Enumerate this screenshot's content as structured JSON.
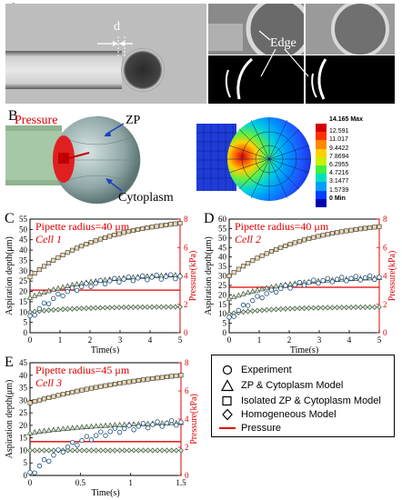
{
  "panel_a": {
    "letter": "A",
    "d_label": "d",
    "edge_label": "Edge"
  },
  "panel_b": {
    "letter": "B",
    "pressure_label": "Pressure",
    "zp_label": "ZP",
    "cytoplasm_label": "Cytoplasm",
    "colorbar": {
      "max_label": "14.165 Max",
      "ticks": [
        "12.591",
        "11.017",
        "9.4422",
        "7.8694",
        "6.2955",
        "4.7216",
        "3.1477",
        "1.5739",
        "0 Min"
      ],
      "colors": [
        "#d40000",
        "#ff3000",
        "#ff8800",
        "#ffd000",
        "#c8f000",
        "#40f040",
        "#00e0c0",
        "#00a0ff",
        "#0040ff",
        "#0000b0"
      ]
    }
  },
  "colors": {
    "pressure": "#e00000",
    "exp_edge": "#1a4d7a",
    "zp_fill": "#c9ecc0",
    "iso_fill": "#ecd9b0",
    "hom_fill": "#c9ecc0"
  },
  "legend": {
    "experiment": "Experiment",
    "zp_cyto": "ZP & Cytoplasm Model",
    "isolated": "Isolated ZP & Cytoplasm Model",
    "homogeneous": "Homogeneous Model",
    "pressure": "Pressure"
  },
  "chart_data": [
    {
      "type": "scatter",
      "letter": "C",
      "title": "Pipette radius=40 μm",
      "subtitle": "Cell 1",
      "xlabel": "Time(s)",
      "ylabel": "Aspiration depth(μm)",
      "y2label": "Pressure(kPa)",
      "xlim": [
        0,
        5
      ],
      "ylim": [
        0,
        55
      ],
      "y2lim": [
        0,
        8
      ],
      "xticks": [
        0,
        1,
        2,
        3,
        4,
        5
      ],
      "yticks": [
        0,
        5,
        10,
        15,
        20,
        25,
        30,
        35,
        40,
        45,
        50,
        55
      ],
      "y2ticks": [
        0,
        2,
        4,
        6,
        8
      ],
      "pressure_kpa": 3.0,
      "series": {
        "isolated": {
          "a": 27,
          "b": 53,
          "tau": 2.5,
          "n": 33
        },
        "zp": {
          "a": 17,
          "b": 28,
          "tau": 2.0,
          "n": 33
        },
        "hom": {
          "a": 10,
          "b": 12.5,
          "tau": 1.5,
          "n": 33
        },
        "exp": {
          "a": 7,
          "b": 27,
          "tau": 1.3,
          "n": 33
        }
      }
    },
    {
      "type": "scatter",
      "letter": "D",
      "title": "Pipette radius=40 μm",
      "subtitle": "Cell 2",
      "xlabel": "Time(s)",
      "ylabel": "Aspiration depth(μm)",
      "y2label": "Pressure(kPa)",
      "xlim": [
        0,
        5
      ],
      "ylim": [
        0,
        60
      ],
      "y2lim": [
        0,
        8
      ],
      "xticks": [
        0,
        1,
        2,
        3,
        4,
        5
      ],
      "yticks": [
        0,
        5,
        10,
        15,
        20,
        25,
        30,
        35,
        40,
        45,
        50,
        55,
        60
      ],
      "y2ticks": [
        0,
        2,
        4,
        6,
        8
      ],
      "pressure_kpa": 3.2,
      "series": {
        "isolated": {
          "a": 30,
          "b": 56,
          "tau": 2.5,
          "n": 33
        },
        "zp": {
          "a": 18,
          "b": 29,
          "tau": 2.0,
          "n": 33
        },
        "hom": {
          "a": 10,
          "b": 13.5,
          "tau": 1.5,
          "n": 33
        },
        "exp": {
          "a": 7,
          "b": 29,
          "tau": 1.4,
          "n": 33
        }
      }
    },
    {
      "type": "scatter",
      "letter": "E",
      "title": "Pipette radius=45 μm",
      "subtitle": "Cell 3",
      "xlabel": "Time(s)",
      "ylabel": "Aspiration depth(μm)",
      "y2label": "Pressure(kPa)",
      "xlim": [
        0,
        1.5
      ],
      "ylim": [
        0,
        45
      ],
      "y2lim": [
        0,
        8
      ],
      "xticks": [
        0,
        0.5,
        1,
        1.5
      ],
      "yticks": [
        0,
        5,
        10,
        15,
        20,
        25,
        30,
        35,
        40,
        45
      ],
      "y2ticks": [
        0,
        2,
        4,
        6,
        8
      ],
      "pressure_kpa": 2.4,
      "series": {
        "isolated": {
          "a": 29,
          "b": 40,
          "tau": 1.5,
          "n": 33
        },
        "zp": {
          "a": 17,
          "b": 21,
          "tau": 0.8,
          "n": 33
        },
        "hom": {
          "a": 10,
          "b": 10,
          "tau": 0.5,
          "n": 33
        },
        "exp": {
          "a": 0,
          "b": 21,
          "tau": 0.55,
          "n": 33
        }
      }
    }
  ]
}
